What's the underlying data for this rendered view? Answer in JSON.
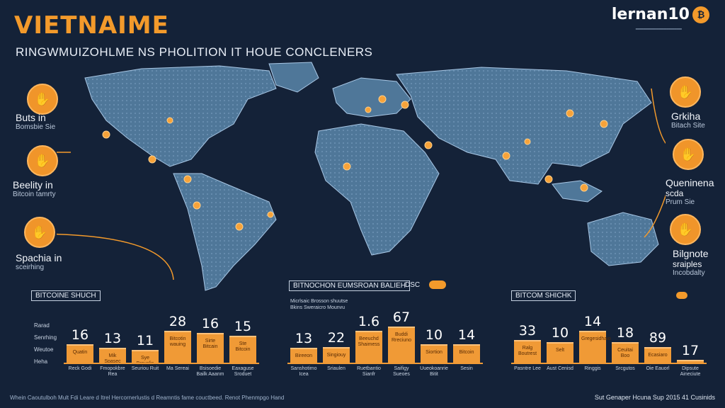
{
  "header": {
    "title": "VIETNAIME",
    "subtitle": "RINGWMUIZOHLME NS PHOLITION IT HOUE CONCLENERS",
    "brand": "lernan10",
    "brand_tagline": "━━━━━━━━━━━━━━━━━━"
  },
  "left_callouts": [
    {
      "title": "Buts in",
      "subtitle": "Bomsbie Sie",
      "icon": "hand-icon"
    },
    {
      "title": "Beelity in",
      "subtitle": "Bitcoin tamrty",
      "icon": "hand-coin-icon"
    },
    {
      "title": "Spachia in",
      "subtitle": "sceirhing",
      "icon": "hand-icon"
    }
  ],
  "right_callouts": [
    {
      "title": "Grkiha",
      "subtitle": "Bitach Site",
      "icon": "hand-icon"
    },
    {
      "title": "Queninena",
      "subtitle2": "scda",
      "subtitle": "Prum Sie",
      "icon": "hand-icon"
    },
    {
      "title": "Bilgnote",
      "subtitle2": "sraiples",
      "subtitle": "Incobdalty",
      "icon": "hand-icon"
    }
  ],
  "panels": [
    {
      "header": "BITCOINE SHUCH",
      "row_labels": [
        "Rarad",
        "Senrhing",
        "Weutoe",
        "Heha"
      ],
      "bars": [
        {
          "value": "16",
          "inner": "Quatin",
          "label": "Reck Godi",
          "height": 16
        },
        {
          "value": "13",
          "inner": "Mik Spasec",
          "label": "Fmopokbre Rea",
          "height": 13
        },
        {
          "value": "11",
          "inner": "Sye Brcuslin",
          "label": "Seuriou Ruit",
          "height": 11
        },
        {
          "value": "28",
          "inner": "Bitcotin wauing",
          "label": "Ma Sereai",
          "height": 28
        },
        {
          "value": "16",
          "inner": "Sirte Bitcain",
          "label": "Bsisoedie Bailk Aaanm",
          "height": 26
        },
        {
          "value": "15",
          "inner": "Ste Bitcoin",
          "label": "Eaxaguse Sroduet",
          "height": 24
        }
      ]
    },
    {
      "header": "BITNOCHON EUMSROAN BALIEH",
      "header_extra": "DSC",
      "note": "Micrlsaic Brosson shuutse",
      "note2": "Bkins Sweraicro Mounvu",
      "bars": [
        {
          "value": "13",
          "inner": "Bireeon",
          "label": "Sanshotimo Icea",
          "height": 13
        },
        {
          "value": "22",
          "inner": "Singiouy",
          "label": "Sriaulen",
          "height": 14
        },
        {
          "value": "1.6",
          "inner": "Beeuchd Shaimess",
          "label": "Ruetbantio Sianfr",
          "height": 28
        },
        {
          "value": "67",
          "inner": "Buddi Rreciuno",
          "label": "Saifigy Sueoes",
          "height": 32
        },
        {
          "value": "10",
          "inner": "Siortion",
          "label": "Uueokoanrie Bitit",
          "height": 16
        },
        {
          "value": "14",
          "inner": "Bitcoin",
          "label": "Sesin",
          "height": 16
        }
      ]
    },
    {
      "header": "BITCOM SHICHK",
      "bars": [
        {
          "value": "33",
          "inner": "Ralg Boutrest",
          "label": "Pasntre Lee",
          "height": 20
        },
        {
          "value": "10",
          "inner": "Selt",
          "label": "Aust Cenisd",
          "height": 18
        },
        {
          "value": "14",
          "inner": "Gregesidhaio",
          "label": "Ringgis",
          "height": 28
        },
        {
          "value": "18",
          "inner": "Ceuitai Boo",
          "label": "Srcgutos",
          "height": 18
        },
        {
          "value": "89",
          "inner": "Ecasiaro",
          "label": "Oie Eauorl",
          "height": 14
        },
        {
          "value": "17",
          "inner": "",
          "label": "Dipsute Aineciute",
          "height": 2
        }
      ]
    }
  ],
  "footer": {
    "left": "Whein Caoutulboh Mult Fdi Leare d Itrel Hercornerlustis d Reamntis fame couctbeed. Renot Phenmpgo Hand",
    "right": "Sut Genaper Hcuna Sup 2015 41 Cusinids"
  },
  "colors": {
    "background": "#142238",
    "accent": "#f39a2b",
    "land": "#4f7799"
  }
}
